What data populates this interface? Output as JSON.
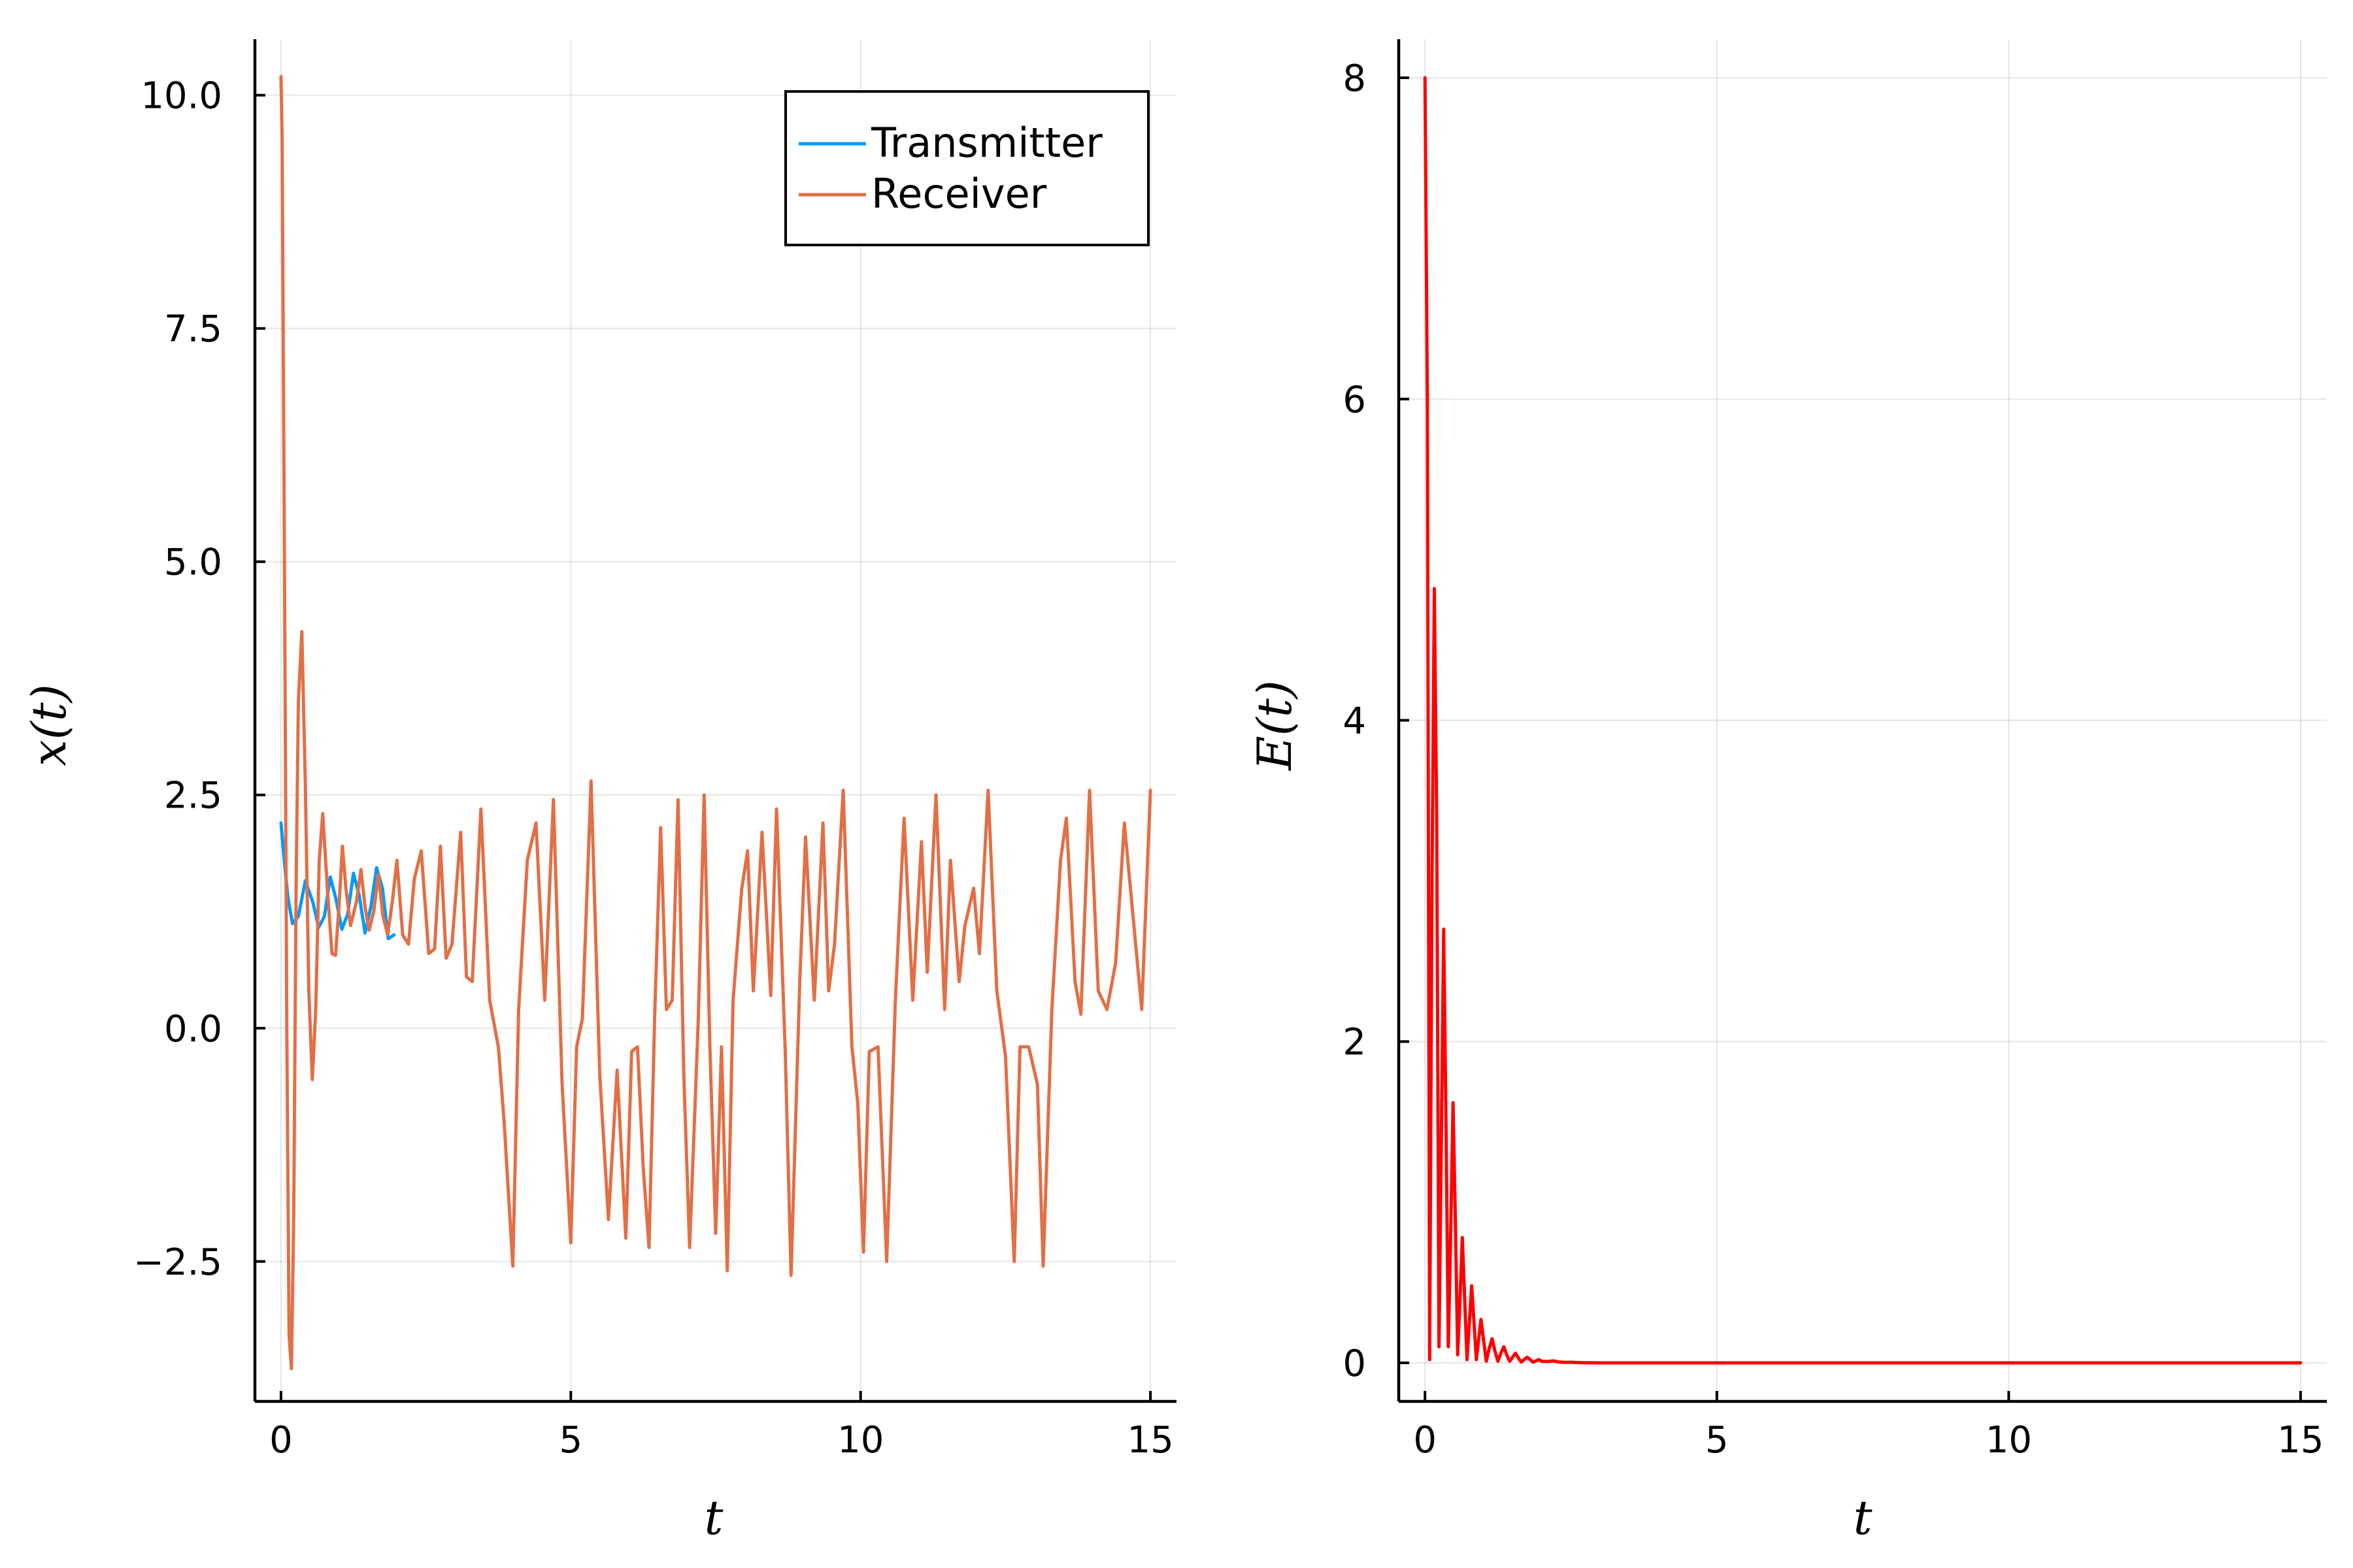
{
  "chart_data": [
    {
      "type": "line",
      "xlabel": "t",
      "ylabel": "x(t)",
      "xlim": [
        -0.45,
        15.45
      ],
      "ylim": [
        -4.0,
        10.6
      ],
      "xticks": [
        0,
        5,
        10,
        15
      ],
      "xtick_labels": [
        "0",
        "5",
        "10",
        "15"
      ],
      "yticks": [
        -2.5,
        0.0,
        2.5,
        5.0,
        7.5,
        10.0
      ],
      "ytick_labels": [
        "−2.5",
        "0.0",
        "2.5",
        "5.0",
        "7.5",
        "10.0"
      ],
      "grid": true,
      "legend_position": "top-right",
      "series": [
        {
          "name": "Transmitter",
          "color": "#009AFA",
          "x": [
            0.0,
            0.05,
            0.12,
            0.2,
            0.3,
            0.42,
            0.55,
            0.65,
            0.75,
            0.85,
            0.95,
            1.05,
            1.15,
            1.25,
            1.35,
            1.45,
            1.55,
            1.65,
            1.75,
            1.85,
            1.95
          ],
          "y": [
            2.2,
            1.85,
            1.4,
            1.12,
            1.2,
            1.58,
            1.35,
            1.08,
            1.2,
            1.62,
            1.38,
            1.06,
            1.22,
            1.66,
            1.42,
            1.02,
            1.3,
            1.72,
            1.5,
            0.96,
            1.0
          ]
        },
        {
          "name": "Receiver",
          "color": "#E26F46",
          "x": [
            0.0,
            0.02,
            0.06,
            0.1,
            0.14,
            0.18,
            0.22,
            0.26,
            0.3,
            0.36,
            0.42,
            0.48,
            0.54,
            0.6,
            0.66,
            0.72,
            0.8,
            0.88,
            0.94,
            1.0,
            1.06,
            1.12,
            1.2,
            1.3,
            1.38,
            1.45,
            1.52,
            1.6,
            1.68,
            1.76,
            1.84,
            1.92,
            2.0,
            2.1,
            2.2,
            2.3,
            2.42,
            2.55,
            2.65,
            2.75,
            2.85,
            2.95,
            3.1,
            3.2,
            3.3,
            3.45,
            3.6,
            3.75,
            3.85,
            4.0,
            4.1,
            4.25,
            4.4,
            4.55,
            4.7,
            4.85,
            5.0,
            5.1,
            5.2,
            5.35,
            5.5,
            5.65,
            5.8,
            5.95,
            6.05,
            6.15,
            6.25,
            6.35,
            6.45,
            6.55,
            6.65,
            6.75,
            6.85,
            6.95,
            7.05,
            7.2,
            7.3,
            7.4,
            7.5,
            7.6,
            7.7,
            7.8,
            7.95,
            8.05,
            8.15,
            8.3,
            8.45,
            8.55,
            8.7,
            8.8,
            8.95,
            9.05,
            9.2,
            9.35,
            9.45,
            9.55,
            9.7,
            9.85,
            9.95,
            10.05,
            10.15,
            10.3,
            10.45,
            10.6,
            10.75,
            10.9,
            11.05,
            11.15,
            11.3,
            11.45,
            11.55,
            11.7,
            11.8,
            11.95,
            12.05,
            12.2,
            12.35,
            12.5,
            12.65,
            12.75,
            12.9,
            13.05,
            13.15,
            13.3,
            13.45,
            13.55,
            13.7,
            13.8,
            13.95,
            14.1,
            14.25,
            14.4,
            14.55,
            14.7,
            14.85,
            15.0
          ],
          "y": [
            10.2,
            9.5,
            5.0,
            0.0,
            -3.3,
            -3.65,
            -2.0,
            1.5,
            3.5,
            4.25,
            2.6,
            0.4,
            -0.55,
            0.2,
            1.8,
            2.3,
            1.5,
            0.8,
            0.78,
            1.3,
            1.95,
            1.5,
            1.1,
            1.35,
            1.7,
            1.3,
            1.05,
            1.25,
            1.65,
            1.2,
            1.0,
            1.35,
            1.8,
            1.0,
            0.9,
            1.6,
            1.9,
            0.8,
            0.85,
            1.95,
            0.75,
            0.9,
            2.1,
            0.55,
            0.5,
            2.35,
            0.3,
            -0.2,
            -1.0,
            -2.55,
            0.2,
            1.8,
            2.2,
            0.3,
            2.45,
            -0.6,
            -2.3,
            -0.2,
            0.1,
            2.65,
            -0.5,
            -2.05,
            -0.45,
            -2.25,
            -0.25,
            -0.2,
            -1.5,
            -2.35,
            0.2,
            2.15,
            0.2,
            0.3,
            2.45,
            -0.5,
            -2.35,
            0.1,
            2.5,
            -0.2,
            -2.2,
            -0.2,
            -2.6,
            0.3,
            1.5,
            1.9,
            0.4,
            2.1,
            0.35,
            2.35,
            -0.25,
            -2.65,
            0.5,
            2.05,
            0.3,
            2.2,
            0.4,
            0.9,
            2.55,
            -0.2,
            -0.8,
            -2.4,
            -0.25,
            -0.2,
            -2.5,
            0.3,
            2.25,
            0.3,
            2.0,
            0.6,
            2.5,
            0.2,
            1.8,
            0.5,
            1.1,
            1.5,
            0.8,
            2.55,
            0.4,
            -0.3,
            -2.5,
            -0.2,
            -0.2,
            -0.6,
            -2.55,
            0.2,
            1.8,
            2.25,
            0.5,
            0.15,
            2.55,
            0.4,
            0.2,
            0.7,
            2.2,
            1.2,
            0.2,
            2.55
          ]
        }
      ]
    },
    {
      "type": "line",
      "xlabel": "t",
      "ylabel": "E(t)",
      "xlim": [
        -0.45,
        15.45
      ],
      "ylim": [
        -0.24,
        8.24
      ],
      "xticks": [
        0,
        5,
        10,
        15
      ],
      "xtick_labels": [
        "0",
        "5",
        "10",
        "15"
      ],
      "yticks": [
        0,
        2,
        4,
        6,
        8
      ],
      "ytick_labels": [
        "0",
        "2",
        "4",
        "6",
        "8"
      ],
      "grid": true,
      "series": [
        {
          "color": "#FF0000",
          "x": [
            0.0,
            0.04,
            0.08,
            0.12,
            0.16,
            0.2,
            0.24,
            0.28,
            0.32,
            0.36,
            0.4,
            0.44,
            0.48,
            0.52,
            0.56,
            0.6,
            0.64,
            0.68,
            0.72,
            0.76,
            0.8,
            0.84,
            0.88,
            0.92,
            0.96,
            1.0,
            1.05,
            1.1,
            1.15,
            1.2,
            1.25,
            1.3,
            1.35,
            1.4,
            1.45,
            1.5,
            1.55,
            1.6,
            1.65,
            1.7,
            1.75,
            1.8,
            1.85,
            1.9,
            1.95,
            2.0,
            2.1,
            2.2,
            2.3,
            2.4,
            2.5,
            2.6,
            2.7,
            3.0,
            4.0,
            6.0,
            8.0,
            10.0,
            12.0,
            15.0
          ],
          "y": [
            8.0,
            6.0,
            0.02,
            3.0,
            4.82,
            3.4,
            0.1,
            1.4,
            2.7,
            1.5,
            0.1,
            0.8,
            1.62,
            0.9,
            0.05,
            0.4,
            0.78,
            0.4,
            0.02,
            0.25,
            0.48,
            0.25,
            0.02,
            0.15,
            0.27,
            0.15,
            0.01,
            0.09,
            0.15,
            0.07,
            0.01,
            0.06,
            0.1,
            0.05,
            0.01,
            0.035,
            0.06,
            0.03,
            0.005,
            0.02,
            0.035,
            0.02,
            0.005,
            0.012,
            0.02,
            0.01,
            0.008,
            0.012,
            0.005,
            0.003,
            0.004,
            0.002,
            0.001,
            0.0,
            0.0,
            0.0,
            0.0,
            0.0,
            0.0,
            0.0
          ]
        }
      ]
    }
  ]
}
